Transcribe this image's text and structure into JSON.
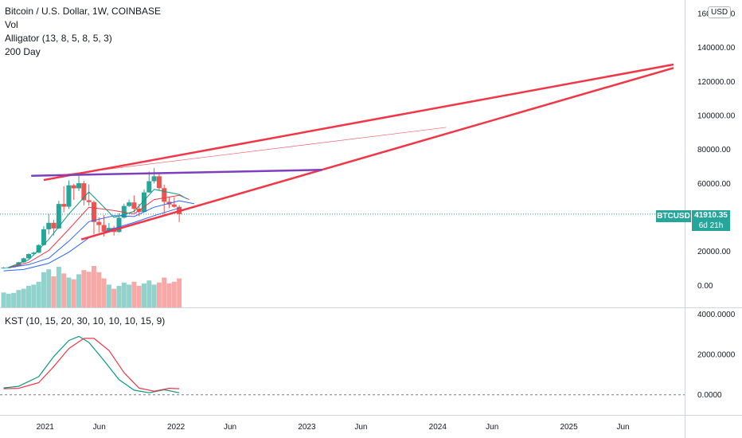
{
  "legend": {
    "title": "Bitcoin / U.S. Dollar, 1W, COINBASE",
    "indicators": [
      "Vol",
      "Alligator (13, 8, 5, 8, 5, 3)",
      "200 Day"
    ]
  },
  "currency_button": "USD",
  "symbol_tag": "BTCUSD",
  "last_price": "41910.35",
  "countdown": "6d 21h",
  "kst_label": "KST (10, 15, 20, 30, 10, 10, 10, 15, 9)",
  "colors": {
    "up": "#26a69a",
    "down": "#ef5350",
    "trend_red": "#f23645",
    "trend_purple": "#7e3fbf",
    "jaw": "#2962ff",
    "teeth": "#f23645",
    "lips": "#089981",
    "kst": "#089981",
    "kst_signal": "#f23645"
  },
  "chart_data": [
    {
      "type": "candlestick",
      "title": "Bitcoin / U.S. Dollar, 1W, COINBASE",
      "y_ticks": [
        "160000.00",
        "140000.00",
        "120000.00",
        "100000.00",
        "80000.00",
        "60000.00",
        "20000.00",
        "0.00"
      ],
      "y_range": [
        -13000,
        168000
      ],
      "x_ticks": [
        "2021",
        "Jun",
        "2022",
        "Jun",
        "2023",
        "Jun",
        "2024",
        "Jun",
        "2025",
        "Jun"
      ],
      "x_tick_dates": [
        "2021-01-01",
        "2021-06-01",
        "2022-01-01",
        "2022-06-01",
        "2023-01-01",
        "2023-06-01",
        "2024-01-01",
        "2024-06-01",
        "2025-01-01",
        "2025-06-01"
      ],
      "x_range": [
        "2020-08-28",
        "2025-11-20"
      ],
      "candles": [
        [
          "2020-09-07",
          10300,
          10700,
          9900,
          10400
        ],
        [
          "2020-09-21",
          10400,
          10900,
          10100,
          10600
        ],
        [
          "2020-10-05",
          10600,
          11500,
          10500,
          11300
        ],
        [
          "2020-10-19",
          11300,
          13800,
          11200,
          13600
        ],
        [
          "2020-11-02",
          13600,
          16300,
          13300,
          15900
        ],
        [
          "2020-11-16",
          15900,
          18800,
          15500,
          18400
        ],
        [
          "2020-11-30",
          18400,
          19800,
          17600,
          19200
        ],
        [
          "2020-12-14",
          19200,
          24200,
          19000,
          23700
        ],
        [
          "2020-12-28",
          23700,
          34800,
          23400,
          33000
        ],
        [
          "2021-01-11",
          33000,
          41900,
          30000,
          36800
        ],
        [
          "2021-01-25",
          36800,
          38500,
          29300,
          33500
        ],
        [
          "2021-02-08",
          33500,
          49700,
          33200,
          47900
        ],
        [
          "2021-02-22",
          47900,
          58300,
          43000,
          46300
        ],
        [
          "2021-03-08",
          46300,
          61800,
          45100,
          58900
        ],
        [
          "2021-03-22",
          58900,
          59700,
          50300,
          57100
        ],
        [
          "2021-04-05",
          57100,
          64800,
          55500,
          60100
        ],
        [
          "2021-04-19",
          60100,
          61500,
          47000,
          50100
        ],
        [
          "2021-05-03",
          50100,
          59500,
          46900,
          49000
        ],
        [
          "2021-05-17",
          49000,
          50000,
          30000,
          37300
        ],
        [
          "2021-05-31",
          37300,
          40000,
          31000,
          35500
        ],
        [
          "2021-06-14",
          35500,
          41300,
          28800,
          31600
        ],
        [
          "2021-06-28",
          31600,
          36700,
          31000,
          33800
        ],
        [
          "2021-07-12",
          33800,
          35000,
          29300,
          31400
        ],
        [
          "2021-07-26",
          31400,
          42400,
          31000,
          39800
        ],
        [
          "2021-08-09",
          39800,
          48100,
          39300,
          46700
        ],
        [
          "2021-08-23",
          46700,
          50500,
          46000,
          48800
        ],
        [
          "2021-09-06",
          48800,
          52900,
          42800,
          45100
        ],
        [
          "2021-09-20",
          45100,
          48000,
          40700,
          43200
        ],
        [
          "2021-10-04",
          43200,
          56500,
          43000,
          54700
        ],
        [
          "2021-10-18",
          54700,
          67000,
          54500,
          61300
        ],
        [
          "2021-11-01",
          61300,
          69000,
          60000,
          64200
        ],
        [
          "2021-11-15",
          64200,
          66300,
          55600,
          57200
        ],
        [
          "2021-11-29",
          57200,
          59300,
          42000,
          49200
        ],
        [
          "2021-12-13",
          49200,
          52000,
          45500,
          47600
        ],
        [
          "2021-12-27",
          47600,
          52000,
          45700,
          46200
        ],
        [
          "2022-01-10",
          46200,
          47200,
          37200,
          41910
        ]
      ],
      "volume": [
        0.36,
        0.33,
        0.35,
        0.42,
        0.45,
        0.52,
        0.55,
        0.62,
        0.85,
        0.92,
        0.75,
        0.98,
        0.82,
        0.72,
        0.68,
        0.8,
        0.9,
        0.86,
        1.0,
        0.85,
        0.7,
        0.55,
        0.45,
        0.52,
        0.6,
        0.55,
        0.62,
        0.52,
        0.58,
        0.65,
        0.55,
        0.6,
        0.72,
        0.58,
        0.62,
        0.7
      ],
      "jaw": [
        [
          "2020-09-21",
          10400
        ],
        [
          "2020-11-16",
          12200
        ],
        [
          "2021-01-11",
          16000
        ],
        [
          "2021-03-08",
          26000
        ],
        [
          "2021-05-03",
          37500
        ],
        [
          "2021-07-12",
          41000
        ],
        [
          "2021-09-06",
          40500
        ],
        [
          "2021-11-01",
          46000
        ],
        [
          "2022-01-10",
          49800
        ],
        [
          "2022-02-21",
          48000
        ]
      ],
      "teeth": [
        [
          "2020-09-21",
          10500
        ],
        [
          "2020-11-16",
          13500
        ],
        [
          "2021-01-11",
          20500
        ],
        [
          "2021-03-08",
          33000
        ],
        [
          "2021-05-03",
          46000
        ],
        [
          "2021-07-12",
          44000
        ],
        [
          "2021-09-06",
          42000
        ],
        [
          "2021-11-01",
          50500
        ],
        [
          "2022-01-10",
          53000
        ],
        [
          "2022-02-07",
          50500
        ]
      ],
      "lips": [
        [
          "2020-09-21",
          10600
        ],
        [
          "2020-11-16",
          15000
        ],
        [
          "2021-01-11",
          27000
        ],
        [
          "2021-03-08",
          42000
        ],
        [
          "2021-05-03",
          55000
        ],
        [
          "2021-07-12",
          40000
        ],
        [
          "2021-09-06",
          43500
        ],
        [
          "2021-11-01",
          56500
        ],
        [
          "2022-01-10",
          53500
        ],
        [
          "2022-01-31",
          51000
        ]
      ],
      "ma200": [
        [
          "2020-09-07",
          8500
        ],
        [
          "2020-11-02",
          9300
        ],
        [
          "2021-01-11",
          13000
        ],
        [
          "2021-03-08",
          19500
        ],
        [
          "2021-05-03",
          28000
        ],
        [
          "2021-07-12",
          33500
        ],
        [
          "2021-09-06",
          37000
        ],
        [
          "2021-11-01",
          41000
        ],
        [
          "2022-01-10",
          45500
        ]
      ],
      "trend_lines": [
        {
          "color": "trend_red",
          "points": [
            [
              "2020-12-28",
              62000
            ],
            [
              "2025-10-20",
              130000
            ]
          ]
        },
        {
          "color": "trend_red",
          "points": [
            [
              "2021-04-12",
              27000
            ],
            [
              "2025-10-20",
              128000
            ]
          ]
        },
        {
          "color": "trend_purple",
          "points": [
            [
              "2020-11-23",
              64500
            ],
            [
              "2023-02-13",
              68000
            ]
          ]
        },
        {
          "color": "trend_red_thin",
          "points": [
            [
              "2021-02-15",
              65000
            ],
            [
              "2024-01-25",
              93000
            ]
          ]
        }
      ],
      "last_price": 41910.35
    },
    {
      "type": "line",
      "title": "KST (10, 15, 20, 30, 10, 10, 10, 15, 9)",
      "y_ticks": [
        "4000.0000",
        "2000.0000",
        "0.0000"
      ],
      "y_range": [
        -1000,
        4300
      ],
      "series": [
        {
          "values": [
            [
              "2020-09-07",
              340
            ],
            [
              "2020-10-19",
              420
            ],
            [
              "2020-12-14",
              900
            ],
            [
              "2021-01-25",
              1900
            ],
            [
              "2021-03-08",
              2700
            ],
            [
              "2021-04-05",
              2900
            ],
            [
              "2021-05-03",
              2600
            ],
            [
              "2021-06-14",
              1700
            ],
            [
              "2021-07-26",
              750
            ],
            [
              "2021-09-06",
              230
            ],
            [
              "2021-10-18",
              100
            ],
            [
              "2021-11-29",
              250
            ],
            [
              "2022-01-10",
              100
            ]
          ]
        },
        {
          "values": [
            [
              "2020-09-07",
              300
            ],
            [
              "2020-10-19",
              320
            ],
            [
              "2020-12-14",
              600
            ],
            [
              "2021-01-25",
              1400
            ],
            [
              "2021-03-08",
              2300
            ],
            [
              "2021-04-19",
              2800
            ],
            [
              "2021-05-17",
              2800
            ],
            [
              "2021-06-28",
              2200
            ],
            [
              "2021-08-09",
              1100
            ],
            [
              "2021-09-20",
              330
            ],
            [
              "2021-11-01",
              180
            ],
            [
              "2021-12-13",
              320
            ],
            [
              "2022-01-10",
              300
            ]
          ]
        }
      ]
    }
  ]
}
